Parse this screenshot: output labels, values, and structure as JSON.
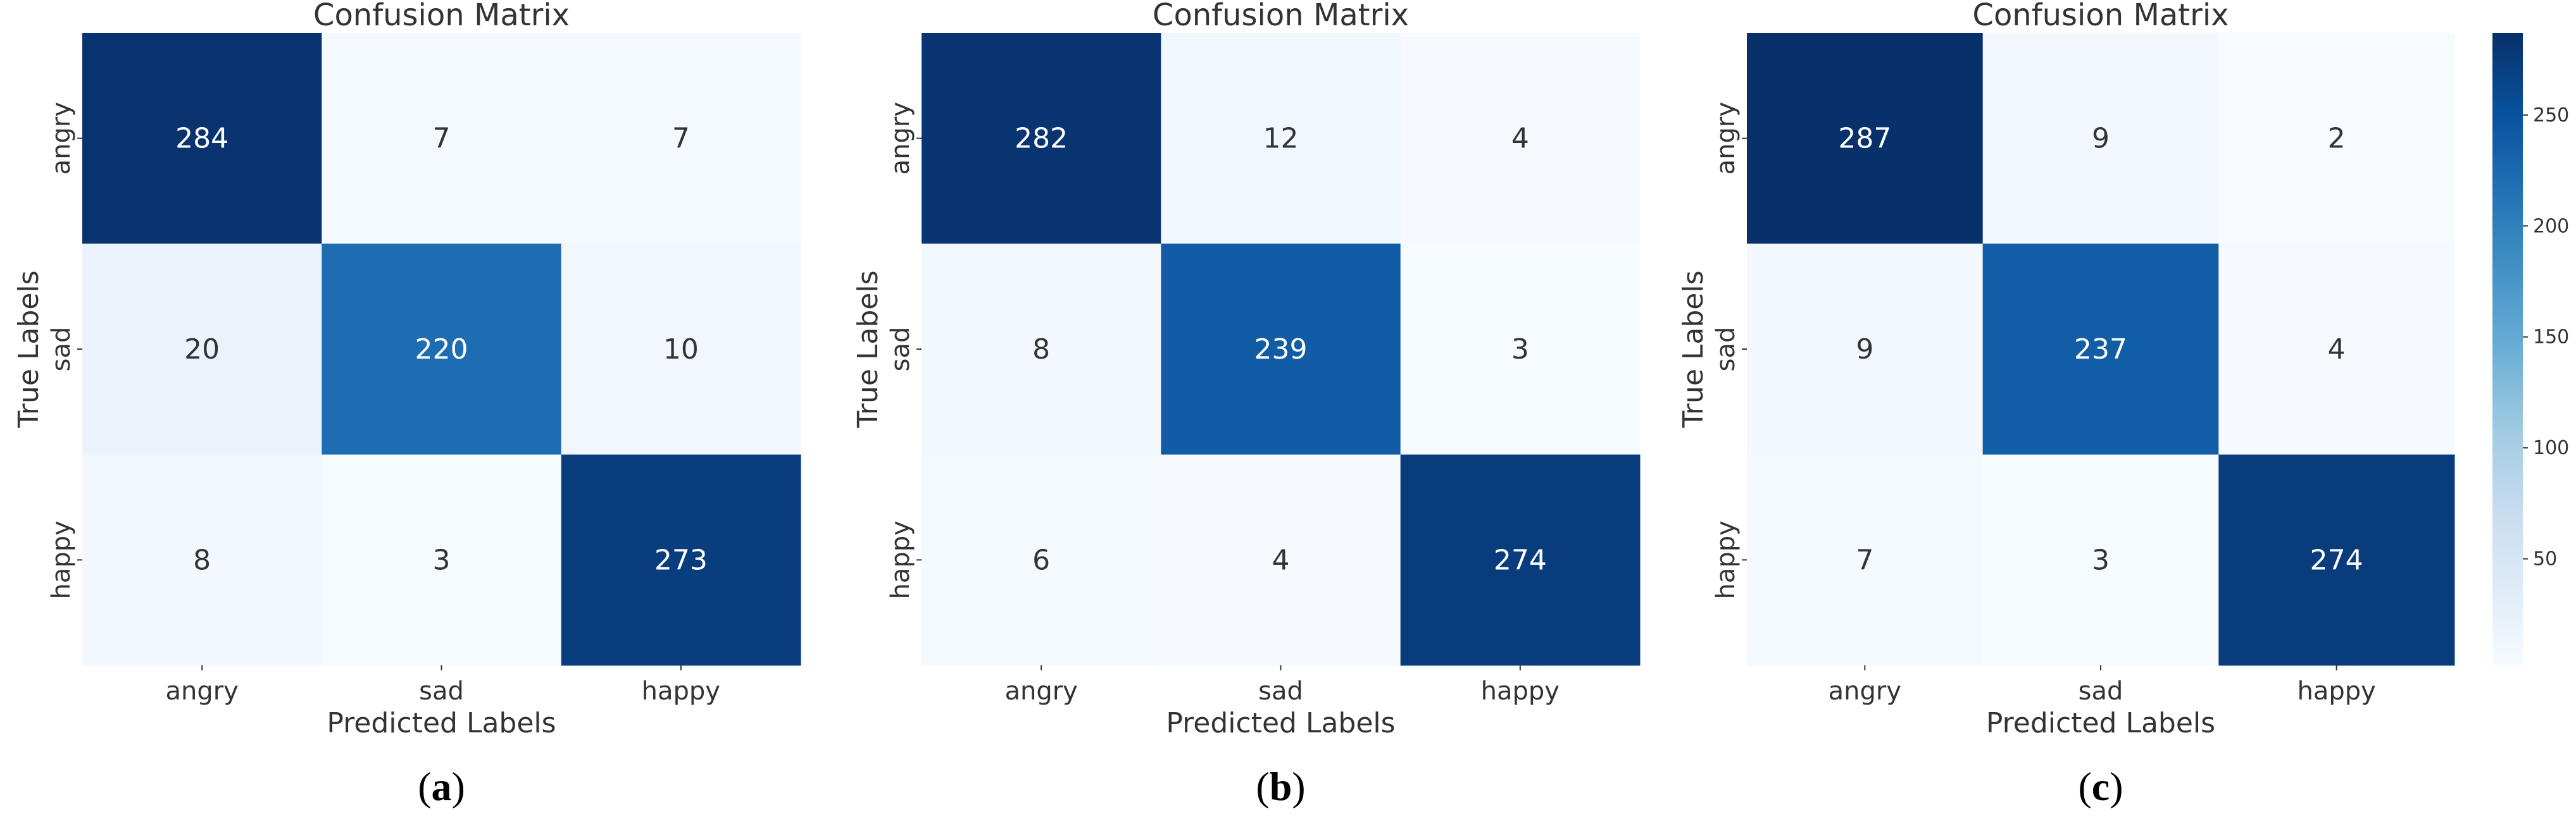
{
  "chart_data": [
    {
      "type": "heatmap",
      "title": "Confusion Matrix",
      "xlabel": "Predicted Labels",
      "ylabel": "True Labels",
      "x_categories": [
        "angry",
        "sad",
        "happy"
      ],
      "y_categories": [
        "angry",
        "sad",
        "happy"
      ],
      "values": [
        [
          284,
          7,
          7
        ],
        [
          20,
          220,
          10
        ],
        [
          8,
          3,
          273
        ]
      ],
      "panel_label": [
        "(",
        "a",
        ")"
      ],
      "colormap": "Blues"
    },
    {
      "type": "heatmap",
      "title": "Confusion Matrix",
      "xlabel": "Predicted Labels",
      "ylabel": "True Labels",
      "x_categories": [
        "angry",
        "sad",
        "happy"
      ],
      "y_categories": [
        "angry",
        "sad",
        "happy"
      ],
      "values": [
        [
          282,
          12,
          4
        ],
        [
          8,
          239,
          3
        ],
        [
          6,
          4,
          274
        ]
      ],
      "panel_label": [
        "(",
        "b",
        ")"
      ],
      "colormap": "Blues"
    },
    {
      "type": "heatmap",
      "title": "Confusion Matrix",
      "xlabel": "Predicted Labels",
      "ylabel": "True Labels",
      "x_categories": [
        "angry",
        "sad",
        "happy"
      ],
      "y_categories": [
        "angry",
        "sad",
        "happy"
      ],
      "values": [
        [
          287,
          9,
          2
        ],
        [
          9,
          237,
          4
        ],
        [
          7,
          3,
          274
        ]
      ],
      "panel_label": [
        "(",
        "c",
        ")"
      ],
      "colormap": "Blues",
      "colorbar": {
        "ticks": [
          50,
          100,
          150,
          200,
          250
        ],
        "range": [
          2,
          287
        ]
      }
    }
  ],
  "colors": {
    "cmap_low": "#f7fbff",
    "cmap_mid": "#6baed6",
    "cmap_high": "#08306b",
    "text_dark": "#333333",
    "text_light": "#ffffff"
  }
}
